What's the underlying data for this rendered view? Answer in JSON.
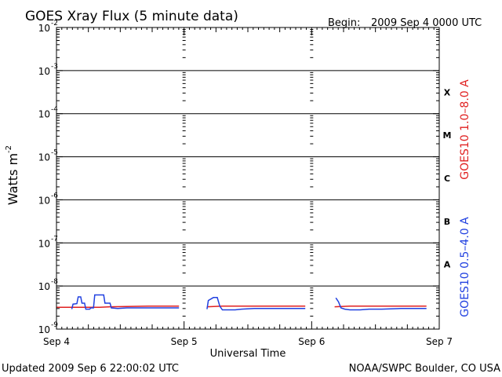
{
  "header": {
    "title": "GOES Xray Flux (5 minute data)",
    "begin_label": "Begin:",
    "begin_value": "2009 Sep 4 0000 UTC"
  },
  "footer": {
    "updated": "Updated 2009 Sep  6 22:00:02 UTC",
    "credit": "NOAA/SWPC Boulder, CO USA"
  },
  "chart_data": {
    "type": "line",
    "title": "GOES Xray Flux (5 minute data)",
    "xlabel": "Universal Time",
    "ylabel": "Watts m",
    "ylabel_superscript": "-2",
    "yscale": "log",
    "ylim": [
      1e-09,
      0.01
    ],
    "xlim_days": [
      0,
      3
    ],
    "x_ticks": [
      {
        "day": 0,
        "label": "Sep 4"
      },
      {
        "day": 1,
        "label": "Sep 5"
      },
      {
        "day": 2,
        "label": "Sep 6"
      },
      {
        "day": 3,
        "label": "Sep 7"
      }
    ],
    "y_ticks": [
      {
        "exp": -9,
        "base": "10",
        "sup": "-9"
      },
      {
        "exp": -8,
        "base": "10",
        "sup": "-8"
      },
      {
        "exp": -7,
        "base": "10",
        "sup": "-7"
      },
      {
        "exp": -6,
        "base": "10",
        "sup": "-6"
      },
      {
        "exp": -5,
        "base": "10",
        "sup": "-5"
      },
      {
        "exp": -4,
        "base": "10",
        "sup": "-4"
      },
      {
        "exp": -3,
        "base": "10",
        "sup": "-3"
      },
      {
        "exp": -2,
        "base": "10",
        "sup": "-2"
      }
    ],
    "flare_classes": [
      {
        "label": "A",
        "exp": -7.5
      },
      {
        "label": "B",
        "exp": -6.5
      },
      {
        "label": "C",
        "exp": -5.5
      },
      {
        "label": "M",
        "exp": -4.5
      },
      {
        "label": "X",
        "exp": -3.5
      }
    ],
    "grid": true,
    "series": [
      {
        "name": "GOES10 1.0–8.0 A",
        "color": "#e02020",
        "segments": [
          [
            [
              0.0,
              3.2e-09
            ],
            [
              0.33,
              3.2e-09
            ],
            [
              0.42,
              3.3e-09
            ],
            [
              0.72,
              3.4e-09
            ],
            [
              0.96,
              3.4e-09
            ]
          ],
          [
            [
              1.18,
              3.3e-09
            ],
            [
              1.3,
              3.4e-09
            ],
            [
              1.6,
              3.4e-09
            ],
            [
              1.95,
              3.4e-09
            ]
          ],
          [
            [
              2.18,
              3.3e-09
            ],
            [
              2.3,
              3.4e-09
            ],
            [
              2.9,
              3.4e-09
            ]
          ]
        ]
      },
      {
        "name": "GOES10 0.5–4.0 A",
        "color": "#2040e0",
        "segments": [
          [
            [
              0.12,
              2.9e-09
            ],
            [
              0.13,
              3.8e-09
            ],
            [
              0.16,
              3.9e-09
            ],
            [
              0.17,
              5.6e-09
            ],
            [
              0.19,
              5.6e-09
            ],
            [
              0.2,
              4e-09
            ],
            [
              0.22,
              4e-09
            ],
            [
              0.23,
              2.9e-09
            ],
            [
              0.26,
              2.9e-09
            ],
            [
              0.27,
              3.1e-09
            ],
            [
              0.29,
              3.1e-09
            ],
            [
              0.3,
              6.2e-09
            ],
            [
              0.37,
              6.2e-09
            ],
            [
              0.38,
              4e-09
            ],
            [
              0.42,
              4e-09
            ],
            [
              0.43,
              3.1e-09
            ],
            [
              0.48,
              3e-09
            ],
            [
              0.55,
              3.1e-09
            ],
            [
              0.7,
              3.1e-09
            ],
            [
              0.8,
              3.1e-09
            ],
            [
              0.96,
              3.1e-09
            ]
          ],
          [
            [
              1.18,
              2.9e-09
            ],
            [
              1.19,
              4.6e-09
            ],
            [
              1.23,
              5.4e-09
            ],
            [
              1.26,
              5.4e-09
            ],
            [
              1.28,
              3.4e-09
            ],
            [
              1.3,
              2.8e-09
            ],
            [
              1.4,
              2.8e-09
            ],
            [
              1.45,
              2.9e-09
            ],
            [
              1.55,
              3e-09
            ],
            [
              1.7,
              3e-09
            ],
            [
              1.95,
              3e-09
            ]
          ],
          [
            [
              2.19,
              5.3e-09
            ],
            [
              2.21,
              4.3e-09
            ],
            [
              2.23,
              3.1e-09
            ],
            [
              2.26,
              2.9e-09
            ],
            [
              2.3,
              2.8e-09
            ],
            [
              2.38,
              2.8e-09
            ],
            [
              2.45,
              2.9e-09
            ],
            [
              2.55,
              2.9e-09
            ],
            [
              2.7,
              3e-09
            ],
            [
              2.9,
              3e-09
            ]
          ]
        ]
      }
    ]
  }
}
